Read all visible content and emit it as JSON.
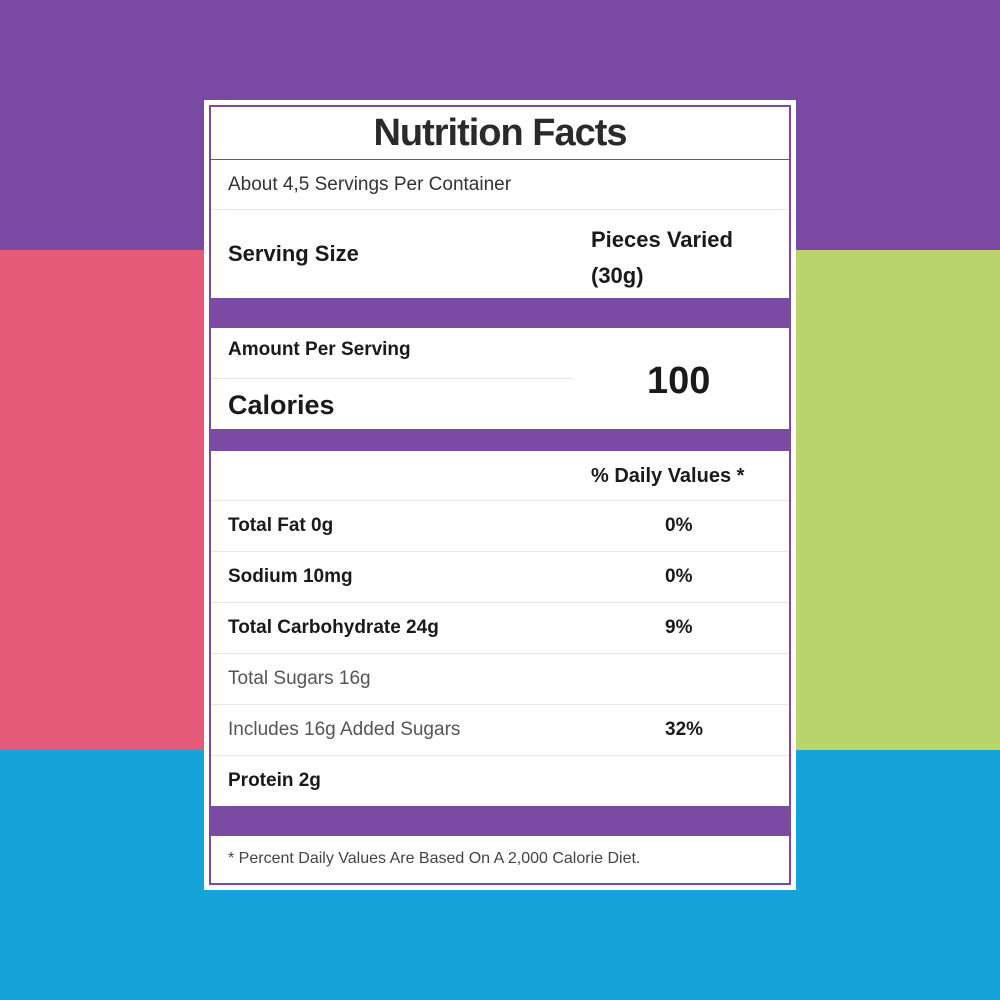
{
  "colors": {
    "top_band": "#7a4aa2",
    "left_band": "#e65a79",
    "right_band": "#b8d46b",
    "bottom_band": "#16a3da",
    "accent_purple": "#7b4aa3"
  },
  "label": {
    "title": "Nutrition Facts",
    "servings_per_container": "About 4,5 Servings Per Container",
    "serving_size_label": "Serving Size",
    "serving_size_value_line1": "Pieces Varied",
    "serving_size_value_line2": "(30g)",
    "amount_per_serving": "Amount Per Serving",
    "calories_label": "Calories",
    "calories_value": "100",
    "daily_values_header": "% Daily Values *",
    "nutrients": [
      {
        "name": "Total Fat 0g",
        "percent": "0%",
        "style": "bold"
      },
      {
        "name": "Sodium 10mg",
        "percent": "0%",
        "style": "bold"
      },
      {
        "name": "Total Carbohydrate 24g",
        "percent": "9%",
        "style": "bold"
      },
      {
        "name": "Total Sugars 16g",
        "percent": "",
        "style": "light"
      },
      {
        "name": "Includes 16g Added Sugars",
        "percent": "32%",
        "style": "light"
      },
      {
        "name": "Protein 2g",
        "percent": "",
        "style": "bold"
      }
    ],
    "footnote": "* Percent Daily Values Are Based On A 2,000 Calorie Diet."
  }
}
